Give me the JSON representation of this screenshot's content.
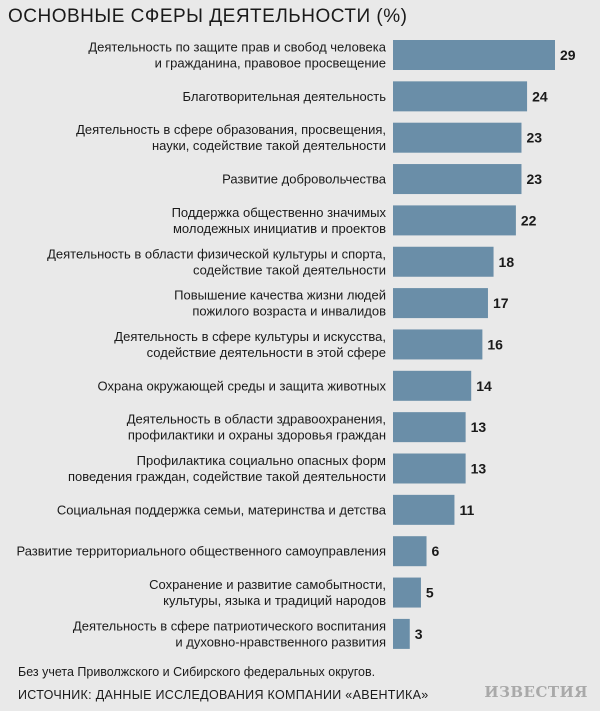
{
  "title": "ОСНОВНЫЕ СФЕРЫ ДЕЯТЕЛЬНОСТИ (%)",
  "footnote": "Без учета Приволжского и Сибирского федеральных округов.",
  "source": "ИСТОЧНИК: ДАННЫЕ ИССЛЕДОВАНИЯ КОМПАНИИ «АВЕНТИКА»",
  "logo": "ИЗВЕСТИЯ",
  "colors": {
    "bar": "#6a8ea8",
    "background": "#e9e9e9",
    "text": "#1a1a1a"
  },
  "chart_data": {
    "type": "bar",
    "orientation": "horizontal",
    "title": "ОСНОВНЫЕ СФЕРЫ ДЕЯТЕЛЬНОСТИ (%)",
    "categories": [
      [
        "Деятельность по защите прав и свобод человека",
        "и гражданина, правовое просвещение"
      ],
      [
        "Благотворительная деятельность"
      ],
      [
        "Деятельность в сфере образования, просвещения,",
        "науки, содействие такой деятельности"
      ],
      [
        "Развитие добровольчества"
      ],
      [
        "Поддержка общественно значимых",
        "молодежных инициатив и проектов"
      ],
      [
        "Деятельность в области физической культуры и спорта,",
        "содействие такой деятельности"
      ],
      [
        "Повышение качества жизни людей",
        "пожилого возраста и инвалидов"
      ],
      [
        "Деятельность в сфере культуры и искусства,",
        "содействие деятельности в этой сфере"
      ],
      [
        "Охрана окружающей среды и защита животных"
      ],
      [
        "Деятельность в области здравоохранения,",
        "профилактики и охраны здоровья граждан"
      ],
      [
        "Профилактика социально опасных форм",
        "поведения граждан, содействие такой деятельности"
      ],
      [
        "Социальная поддержка семьи, материнства и детства"
      ],
      [
        "Развитие территориального общественного самоуправления"
      ],
      [
        "Сохранение и развитие самобытности,",
        "культуры, языка и традиций народов"
      ],
      [
        "Деятельность в сфере патриотического воспитания",
        "и духовно-нравственного развития"
      ]
    ],
    "values": [
      29,
      24,
      23,
      23,
      22,
      18,
      17,
      16,
      14,
      13,
      13,
      11,
      6,
      5,
      3
    ],
    "data_labels": [
      "29",
      "24",
      "23",
      "23",
      "22",
      "18",
      "17",
      "16",
      "14",
      "13",
      "13",
      "11",
      "6",
      "5",
      "3"
    ],
    "xlim": [
      0,
      29
    ],
    "grid": false,
    "legend": "none"
  }
}
